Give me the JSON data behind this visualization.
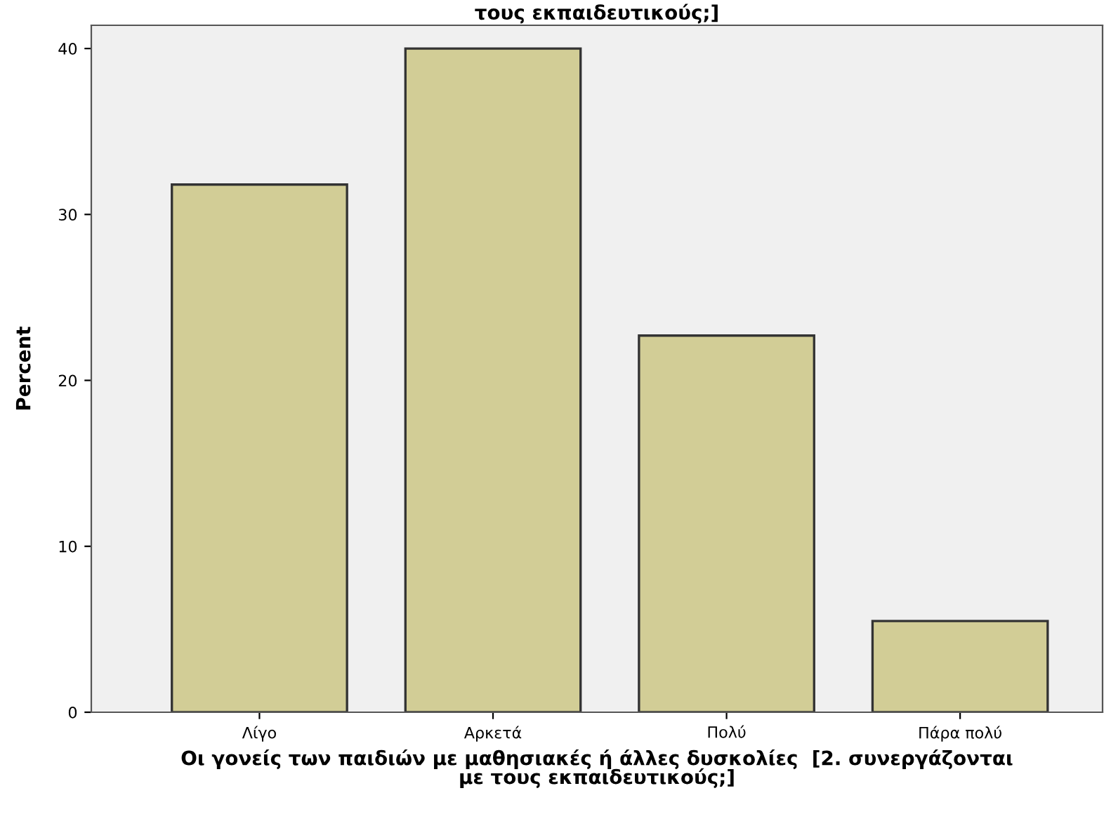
{
  "chart_data": {
    "type": "bar",
    "title": "τους εκπαιδευτικούς;]",
    "xlabel": "Οι γονείς των παιδιών με μαθησιακές ή άλλες δυσκολίες  [2. συνεργάζονται\nμε τους εκπαιδευτικούς;]",
    "ylabel": "Percent",
    "categories": [
      "Λίγο",
      "Αρκετά",
      "Πολύ",
      "Πάρα πολύ"
    ],
    "values": [
      31.8,
      40.0,
      22.7,
      5.5
    ],
    "color": "#d2cd96",
    "ylim": [
      0,
      41.4
    ],
    "yticks": [
      0,
      10,
      20,
      30,
      40
    ],
    "grid": false
  }
}
